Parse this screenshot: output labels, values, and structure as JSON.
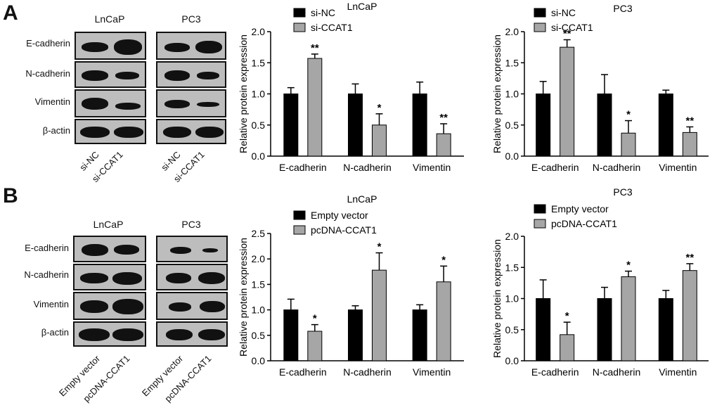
{
  "panels": {
    "A": {
      "letter": "A",
      "blots": [
        {
          "title": "LnCaP",
          "lanes": [
            "si-NC",
            "si-CCAT1"
          ],
          "rows": [
            "E-cadherin",
            "N-cadherin",
            "Vimentin",
            "β-actin"
          ]
        },
        {
          "title": "PC3",
          "lanes": [
            "si-NC",
            "si-CCAT1"
          ],
          "rows": [
            "E-cadherin",
            "N-cadherin",
            "Vimentin",
            "β-actin"
          ]
        }
      ]
    },
    "B": {
      "letter": "B",
      "blots": [
        {
          "title": "LnCaP",
          "lanes": [
            "Empty vector",
            "pcDNA-CCAT1"
          ],
          "rows": [
            "E-cadherin",
            "N-cadherin",
            "Vimentin",
            "β-actin"
          ]
        },
        {
          "title": "PC3",
          "lanes": [
            "Empty vector",
            "pcDNA-CCAT1"
          ],
          "rows": [
            "E-cadherin",
            "N-cadherin",
            "Vimentin",
            "β-actin"
          ]
        }
      ]
    }
  },
  "colors": {
    "series1": "#000000",
    "series2": "#a6a6a6"
  },
  "chart_data": [
    {
      "type": "bar",
      "title": "LnCaP",
      "categories": [
        "E-cadherin",
        "N-cadherin",
        "Vimentin"
      ],
      "series": [
        {
          "name": "si-NC",
          "values": [
            1.0,
            1.0,
            1.0
          ],
          "errors": [
            0.1,
            0.16,
            0.19
          ],
          "sig": [
            "",
            "",
            ""
          ]
        },
        {
          "name": "si-CCAT1",
          "values": [
            1.57,
            0.5,
            0.36
          ],
          "errors": [
            0.07,
            0.18,
            0.16
          ],
          "sig": [
            "**",
            "*",
            "**"
          ]
        }
      ],
      "ylabel": "Relative protein expression",
      "ylim": [
        0,
        2.0
      ],
      "yticks": [
        "0.0",
        "0.5",
        "1.0",
        "1.5",
        "2.0"
      ],
      "legend": "top-left"
    },
    {
      "type": "bar",
      "title": "PC3",
      "categories": [
        "E-cadherin",
        "N-cadherin",
        "Vimentin"
      ],
      "series": [
        {
          "name": "si-NC",
          "values": [
            1.0,
            1.0,
            1.0
          ],
          "errors": [
            0.2,
            0.31,
            0.06
          ],
          "sig": [
            "",
            "",
            ""
          ]
        },
        {
          "name": "si-CCAT1",
          "values": [
            1.75,
            0.37,
            0.38
          ],
          "errors": [
            0.12,
            0.2,
            0.09
          ],
          "sig": [
            "**",
            "*",
            "**"
          ]
        }
      ],
      "ylabel": "Relative protein expression",
      "ylim": [
        0,
        2.0
      ],
      "yticks": [
        "0.0",
        "0.5",
        "1.0",
        "1.5",
        "2.0"
      ],
      "legend": "top-left"
    },
    {
      "type": "bar",
      "title": "LnCaP",
      "categories": [
        "E-cadherin",
        "N-cadherin",
        "Vimentin"
      ],
      "series": [
        {
          "name": "Empty vector",
          "values": [
            1.0,
            1.0,
            1.0
          ],
          "errors": [
            0.21,
            0.08,
            0.1
          ],
          "sig": [
            "",
            "",
            ""
          ]
        },
        {
          "name": "pcDNA-CCAT1",
          "values": [
            0.58,
            1.78,
            1.55
          ],
          "errors": [
            0.13,
            0.34,
            0.31
          ],
          "sig": [
            "*",
            "*",
            "*"
          ]
        }
      ],
      "ylabel": "Relative protein expression",
      "ylim": [
        0,
        2.5
      ],
      "yticks": [
        "0.0",
        "0.5",
        "1.0",
        "1.5",
        "2.0",
        "2.5"
      ],
      "legend": "top-left"
    },
    {
      "type": "bar",
      "title": "PC3",
      "categories": [
        "E-cadherin",
        "N-cadherin",
        "Vimentin"
      ],
      "series": [
        {
          "name": "Empty vector",
          "values": [
            1.0,
            1.0,
            1.0
          ],
          "errors": [
            0.3,
            0.18,
            0.13
          ],
          "sig": [
            "",
            "",
            ""
          ]
        },
        {
          "name": "pcDNA-CCAT1",
          "values": [
            0.42,
            1.35,
            1.45
          ],
          "errors": [
            0.2,
            0.09,
            0.11
          ],
          "sig": [
            "*",
            "*",
            "**"
          ]
        }
      ],
      "ylabel": "Relative protein expression",
      "ylim": [
        0,
        2.0
      ],
      "yticks": [
        "0.0",
        "0.5",
        "1.0",
        "1.5",
        "2.0"
      ],
      "legend": "top-left"
    }
  ]
}
